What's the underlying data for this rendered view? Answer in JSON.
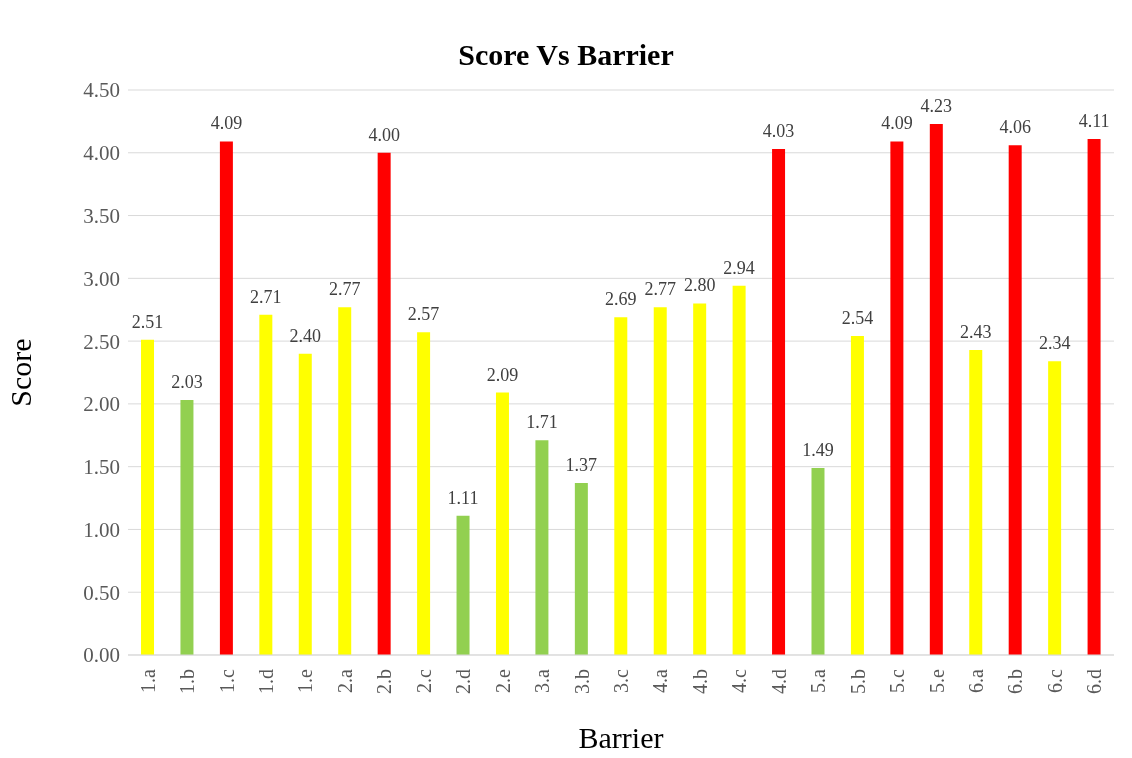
{
  "chart_data": {
    "type": "bar",
    "title": "Score Vs Barrier",
    "xlabel": "Barrier",
    "ylabel": "Score",
    "categories": [
      "1.a",
      "1.b",
      "1.c",
      "1.d",
      "1.e",
      "2.a",
      "2.b",
      "2.c",
      "2.d",
      "2.e",
      "3.a",
      "3.b",
      "3.c",
      "4.a",
      "4.b",
      "4.c",
      "4.d",
      "5.a",
      "5.b",
      "5.c",
      "5.e",
      "6.a",
      "6.b",
      "6.c",
      "6.d"
    ],
    "values": [
      2.51,
      2.03,
      4.09,
      2.71,
      2.4,
      2.77,
      4.0,
      2.57,
      1.11,
      2.09,
      1.71,
      1.37,
      2.69,
      2.77,
      2.8,
      2.94,
      4.03,
      1.49,
      2.54,
      4.09,
      4.23,
      2.43,
      4.06,
      2.34,
      4.11
    ],
    "value_labels": [
      "2.51",
      "2.03",
      "4.09",
      "2.71",
      "2.40",
      "2.77",
      "4.00",
      "2.57",
      "1.11",
      "2.09",
      "1.71",
      "1.37",
      "2.69",
      "2.77",
      "2.80",
      "2.94",
      "4.03",
      "1.49",
      "2.54",
      "4.09",
      "4.23",
      "2.43",
      "4.06",
      "2.34",
      "4.11"
    ],
    "colors": [
      "#ffff00",
      "#92d050",
      "#ff0000",
      "#ffff00",
      "#ffff00",
      "#ffff00",
      "#ff0000",
      "#ffff00",
      "#92d050",
      "#ffff00",
      "#92d050",
      "#92d050",
      "#ffff00",
      "#ffff00",
      "#ffff00",
      "#ffff00",
      "#ff0000",
      "#92d050",
      "#ffff00",
      "#ff0000",
      "#ff0000",
      "#ffff00",
      "#ff0000",
      "#ffff00",
      "#ff0000"
    ],
    "ylim": [
      0,
      4.5
    ],
    "yticks": [
      {
        "value": 0,
        "label": "0.00"
      },
      {
        "value": 0.5,
        "label": "0.50"
      },
      {
        "value": 1,
        "label": "1.00"
      },
      {
        "value": 1.5,
        "label": "1.50"
      },
      {
        "value": 2,
        "label": "2.00"
      },
      {
        "value": 2.5,
        "label": "2.50"
      },
      {
        "value": 3,
        "label": "3.00"
      },
      {
        "value": 3.5,
        "label": "3.50"
      },
      {
        "value": 4,
        "label": "4.00"
      },
      {
        "value": 4.5,
        "label": "4.50"
      }
    ],
    "grid": "y"
  }
}
